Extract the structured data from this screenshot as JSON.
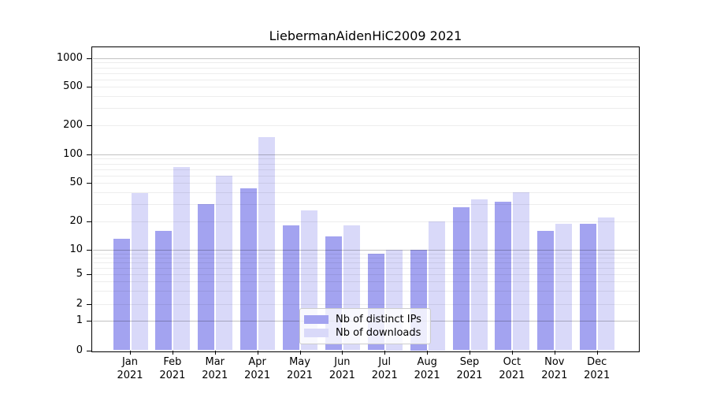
{
  "chart_data": {
    "type": "bar",
    "title": "LiebermanAidenHiC2009 2021",
    "year_label": "2021",
    "months": [
      "Jan",
      "Feb",
      "Mar",
      "Apr",
      "May",
      "Jun",
      "Jul",
      "Aug",
      "Sep",
      "Oct",
      "Nov",
      "Dec"
    ],
    "series": [
      {
        "name": "Nb of distinct IPs",
        "color": "#a3a3f0",
        "values": [
          13,
          16,
          30,
          44,
          18,
          14,
          9,
          10,
          28,
          32,
          16,
          19
        ]
      },
      {
        "name": "Nb of downloads",
        "color": "#d9d9f9",
        "values": [
          39,
          74,
          60,
          150,
          26,
          18,
          10,
          20,
          34,
          40,
          19,
          22
        ]
      }
    ],
    "yscale": "symlog",
    "ytick_labels": [
      "0",
      "1",
      "2",
      "5",
      "10",
      "20",
      "50",
      "100",
      "200",
      "500",
      "1000"
    ],
    "ylim": [
      0,
      1300
    ],
    "grid": true,
    "legend_position": "lower center",
    "background_color": "#ffffff",
    "axis_color": "#000000"
  }
}
